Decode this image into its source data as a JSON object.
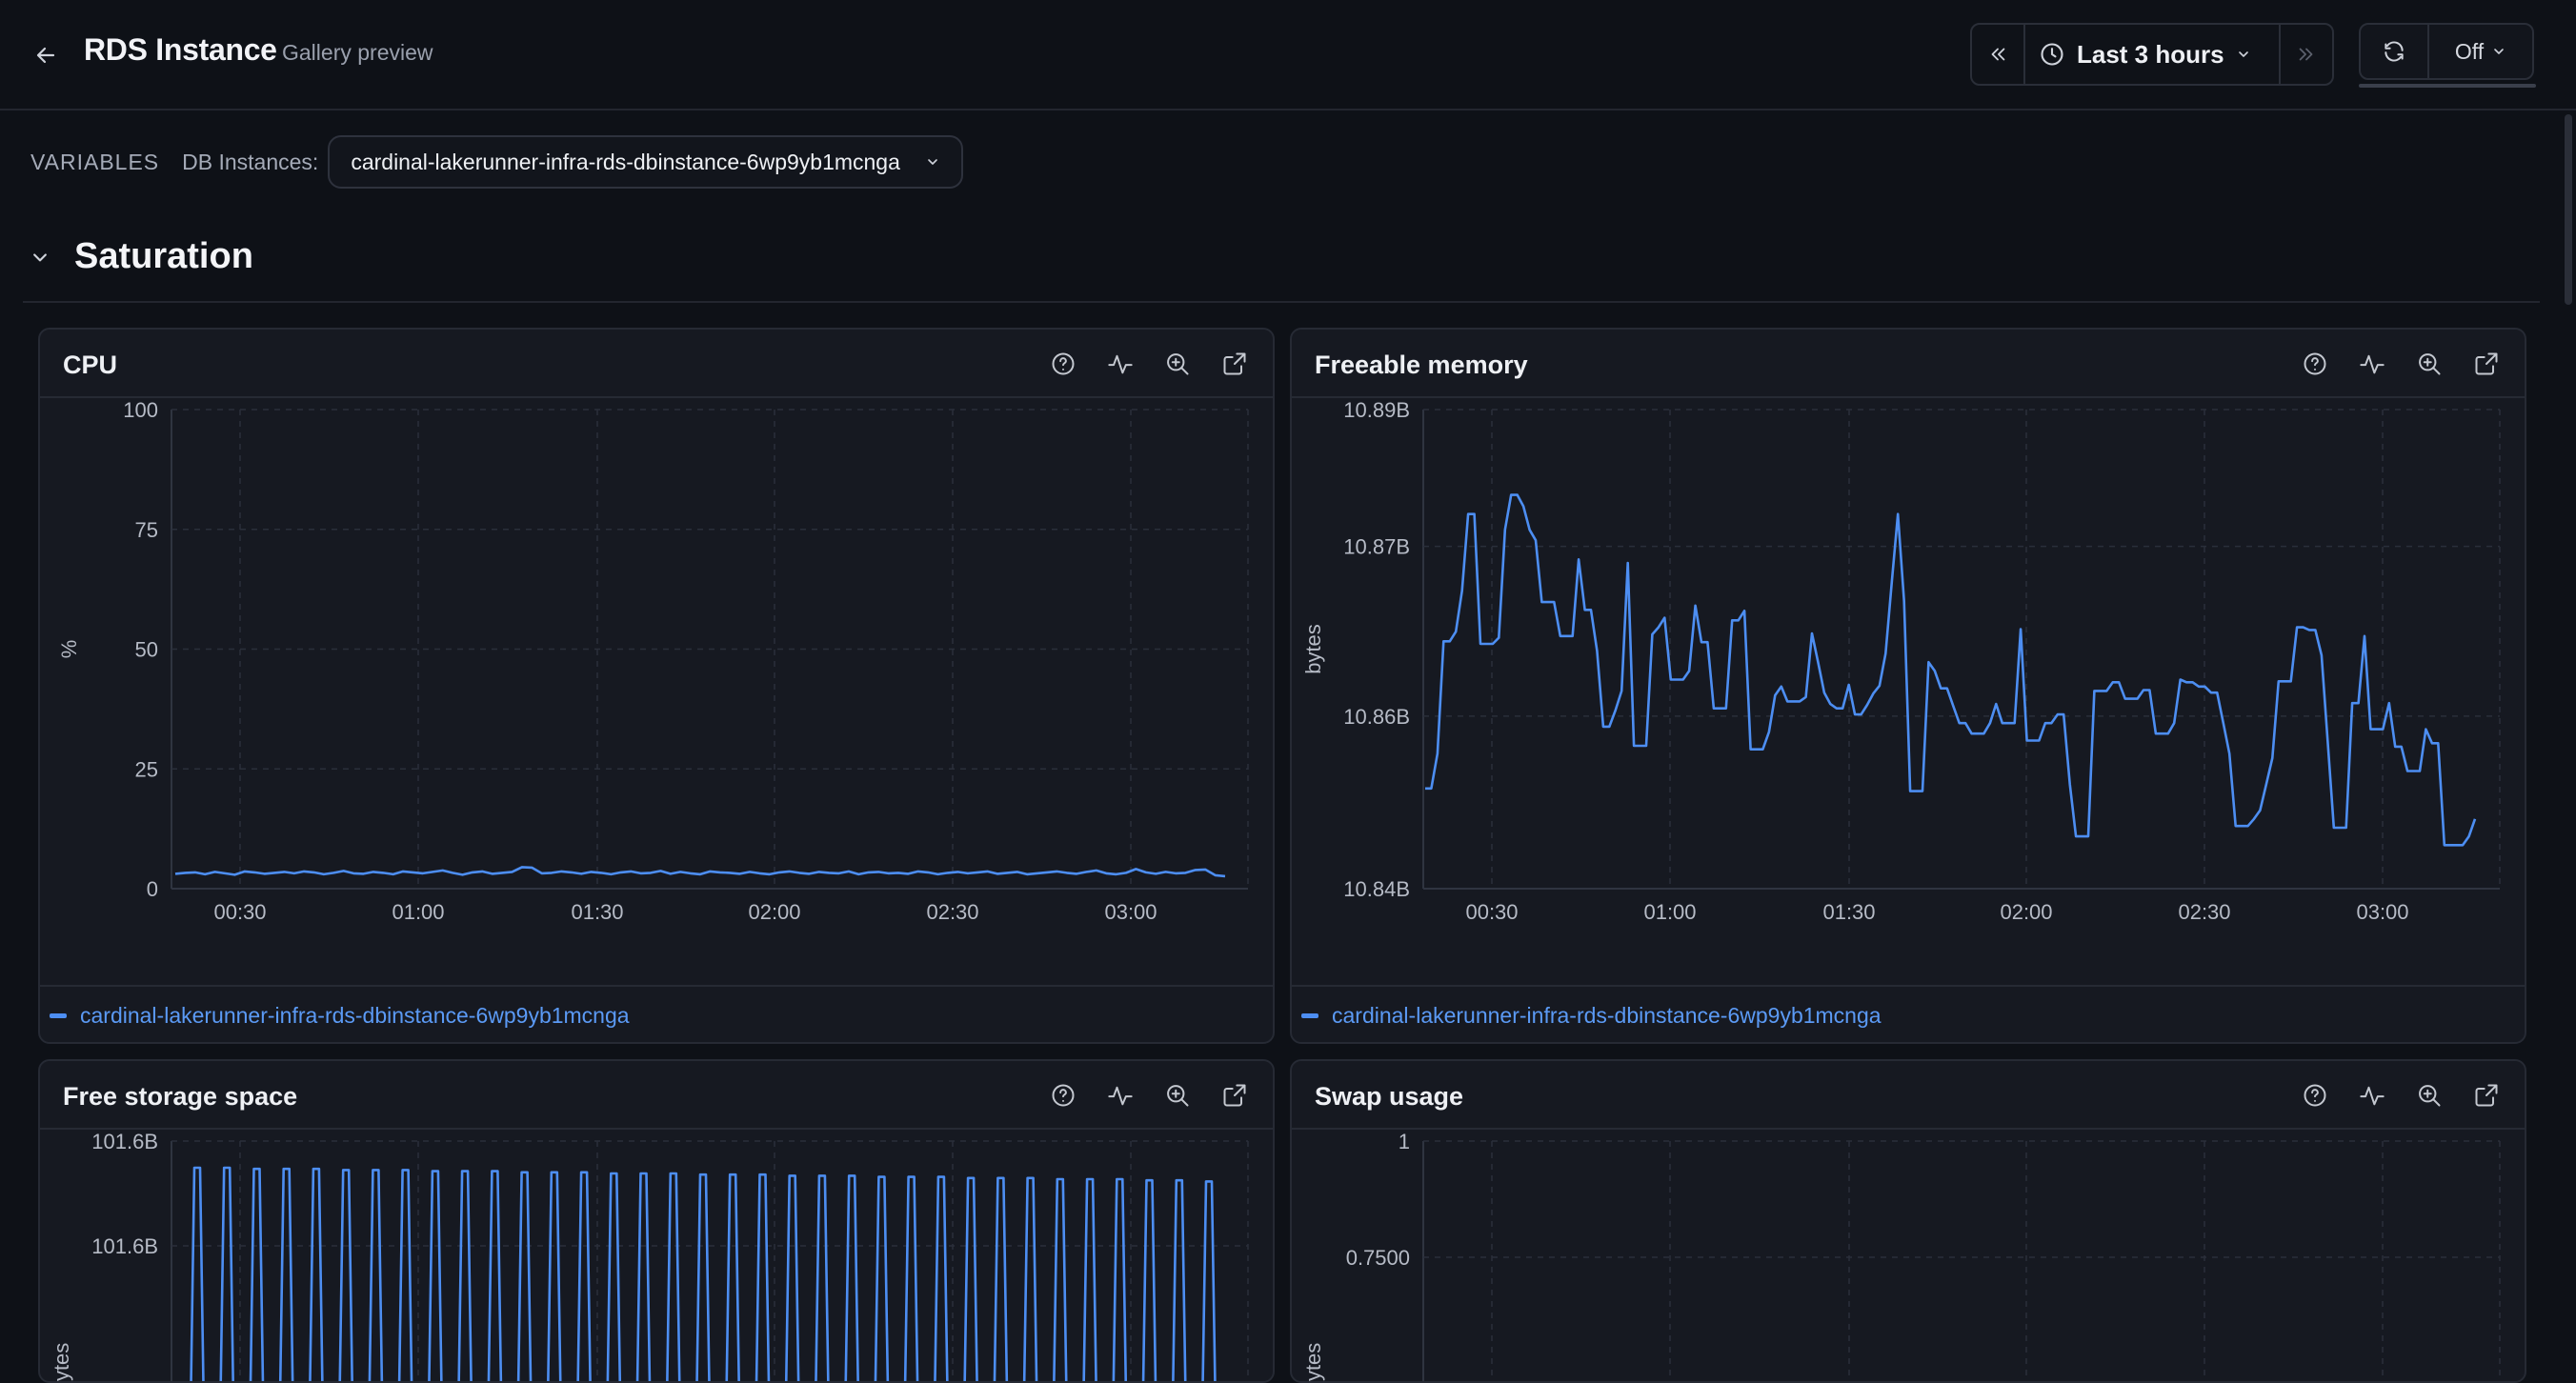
{
  "header": {
    "title": "RDS Instance",
    "subtitle": "Gallery preview",
    "time_range": "Last 3 hours",
    "refresh_interval": "Off"
  },
  "variables": {
    "heading": "VARIABLES",
    "db_label": "DB Instances:",
    "db_value": "cardinal-lakerunner-infra-rds-dbinstance-6wp9yb1mcnga"
  },
  "row": {
    "title": "Saturation"
  },
  "colors": {
    "series": "#4d8ef2",
    "background": "#0e1117",
    "panel": "#161921"
  },
  "panels": [
    {
      "title": "CPU",
      "legend": "cardinal-lakerunner-infra-rds-dbinstance-6wp9yb1mcnga"
    },
    {
      "title": "Freeable memory",
      "legend": "cardinal-lakerunner-infra-rds-dbinstance-6wp9yb1mcnga"
    },
    {
      "title": "Free storage space"
    },
    {
      "title": "Swap usage"
    }
  ],
  "chart_data": [
    {
      "type": "line",
      "title": "CPU",
      "ylabel": "%",
      "ylim": [
        0,
        100
      ],
      "y_ticks": [
        "100",
        "75",
        "50",
        "25",
        "0"
      ],
      "x_ticks": [
        "00:30",
        "01:00",
        "01:30",
        "02:00",
        "02:30",
        "03:00"
      ],
      "grid": true,
      "legend": "bottom",
      "series": [
        {
          "name": "cardinal-lakerunner-infra-rds-dbinstance-6wp9yb1mcnga",
          "values": [
            3.1,
            3.3,
            3.4,
            3.0,
            3.5,
            3.2,
            2.9,
            3.6,
            3.4,
            3.1,
            3.3,
            3.5,
            3.2,
            3.6,
            3.4,
            3.0,
            3.3,
            3.7,
            3.2,
            3.1,
            3.5,
            3.3,
            3.0,
            3.6,
            3.4,
            3.2,
            3.5,
            3.8,
            3.3,
            2.9,
            3.4,
            3.6,
            3.1,
            3.3,
            3.5,
            4.5,
            4.4,
            3.2,
            3.3,
            3.6,
            3.4,
            3.1,
            3.5,
            3.3,
            3.0,
            3.4,
            3.6,
            3.2,
            3.3,
            3.7,
            3.1,
            3.5,
            3.2,
            3.0,
            3.6,
            3.4,
            3.3,
            3.1,
            3.5,
            3.2,
            3.0,
            3.4,
            3.6,
            3.3,
            3.1,
            3.5,
            3.3,
            3.2,
            3.6,
            3.0,
            3.4,
            3.5,
            3.2,
            3.3,
            3.1,
            3.6,
            3.4,
            3.0,
            3.3,
            3.5,
            3.2,
            3.4,
            3.6,
            3.1,
            3.3,
            3.5,
            3.0,
            3.2,
            3.4,
            3.6,
            3.3,
            3.1,
            3.5,
            3.8,
            3.2,
            3.0,
            3.3,
            4.1,
            3.4,
            3.1,
            3.5,
            3.2,
            3.3,
            3.9,
            4.0,
            2.8,
            2.6
          ]
        }
      ]
    },
    {
      "type": "line",
      "title": "Freeable memory",
      "ylabel": "bytes",
      "ylim": [
        10840000000,
        10897000000
      ],
      "y_ticks": [
        "10.89B",
        "10.87B",
        "10.86B",
        "10.84B"
      ],
      "x_ticks": [
        "00:30",
        "01:00",
        "01:30",
        "02:00",
        "02:30",
        "03:00"
      ],
      "grid": true,
      "legend": "bottom",
      "series": [
        {
          "name": "cardinal-lakerunner-infra-rds-dbinstance-6wp9yb1mcnga",
          "values": [
            10.8515,
            10.8515,
            10.8555,
            10.8684,
            10.8684,
            10.8695,
            10.8742,
            10.883,
            10.883,
            10.8681,
            10.8681,
            10.8681,
            10.8688,
            10.8812,
            10.8852,
            10.8852,
            10.8839,
            10.8812,
            10.88,
            10.8729,
            10.8729,
            10.8729,
            10.869,
            10.869,
            10.869,
            10.8778,
            10.872,
            10.872,
            10.8673,
            10.8586,
            10.8586,
            10.8605,
            10.8627,
            10.8774,
            10.8564,
            10.8564,
            10.8564,
            10.8692,
            10.87,
            10.8711,
            10.864,
            10.864,
            10.864,
            10.865,
            10.8725,
            10.8683,
            10.8683,
            10.8607,
            10.8607,
            10.8607,
            10.8708,
            10.8708,
            10.8719,
            10.856,
            10.856,
            10.856,
            10.858,
            10.8622,
            10.8632,
            10.8615,
            10.8615,
            10.8615,
            10.862,
            10.8693,
            10.866,
            10.8625,
            10.8612,
            10.8607,
            10.8607,
            10.8634,
            10.86,
            10.86,
            10.8611,
            10.8624,
            10.8633,
            10.867,
            10.8752,
            10.883,
            10.873,
            10.8512,
            10.8512,
            10.8512,
            10.866,
            10.865,
            10.863,
            10.863,
            10.861,
            10.859,
            10.859,
            10.8578,
            10.8578,
            10.8578,
            10.859,
            10.8612,
            10.859,
            10.859,
            10.859,
            10.8698,
            10.857,
            10.857,
            10.857,
            10.859,
            10.859,
            10.86,
            10.86,
            10.852,
            10.846,
            10.846,
            10.846,
            10.8627,
            10.8627,
            10.8627,
            10.8637,
            10.8637,
            10.8618,
            10.8618,
            10.8618,
            10.8628,
            10.8628,
            10.8578,
            10.8578,
            10.8578,
            10.859,
            10.864,
            10.8637,
            10.8637,
            10.8632,
            10.8632,
            10.8625,
            10.8625,
            10.859,
            10.8555,
            10.8472,
            10.8472,
            10.8472,
            10.848,
            10.849,
            10.852,
            10.855,
            10.8638,
            10.8638,
            10.8638,
            10.87,
            10.87,
            10.8697,
            10.8697,
            10.8668,
            10.857,
            10.847,
            10.847,
            10.847,
            10.8613,
            10.8613,
            10.869,
            10.8583,
            10.8583,
            10.8583,
            10.8613,
            10.8563,
            10.8563,
            10.8535,
            10.8535,
            10.8535,
            10.8583,
            10.8567,
            10.8567,
            10.845,
            10.845,
            10.845,
            10.845,
            10.846,
            10.848
          ]
        }
      ]
    },
    {
      "type": "line",
      "title": "Free storage space",
      "ylabel": "bytes",
      "y_ticks": [
        "101.6B",
        "101.6B"
      ],
      "grid": true,
      "series": [
        {
          "name": "cardinal-lakerunner-infra-rds-dbinstance-6wp9yb1mcnga",
          "peaks": [
            1.0,
            1.0,
            0.99,
            0.99,
            0.99,
            0.98,
            0.98,
            0.98,
            0.97,
            0.97,
            0.97,
            0.96,
            0.96,
            0.96,
            0.95,
            0.95,
            0.95,
            0.94,
            0.94,
            0.94,
            0.93,
            0.93,
            0.93,
            0.92,
            0.92,
            0.92,
            0.91,
            0.91,
            0.91,
            0.9,
            0.9,
            0.9,
            0.89,
            0.89,
            0.88
          ]
        }
      ]
    },
    {
      "type": "line",
      "title": "Swap usage",
      "ylabel": "bytes",
      "y_ticks": [
        "1",
        "0.7500"
      ],
      "grid": true,
      "series": []
    }
  ]
}
